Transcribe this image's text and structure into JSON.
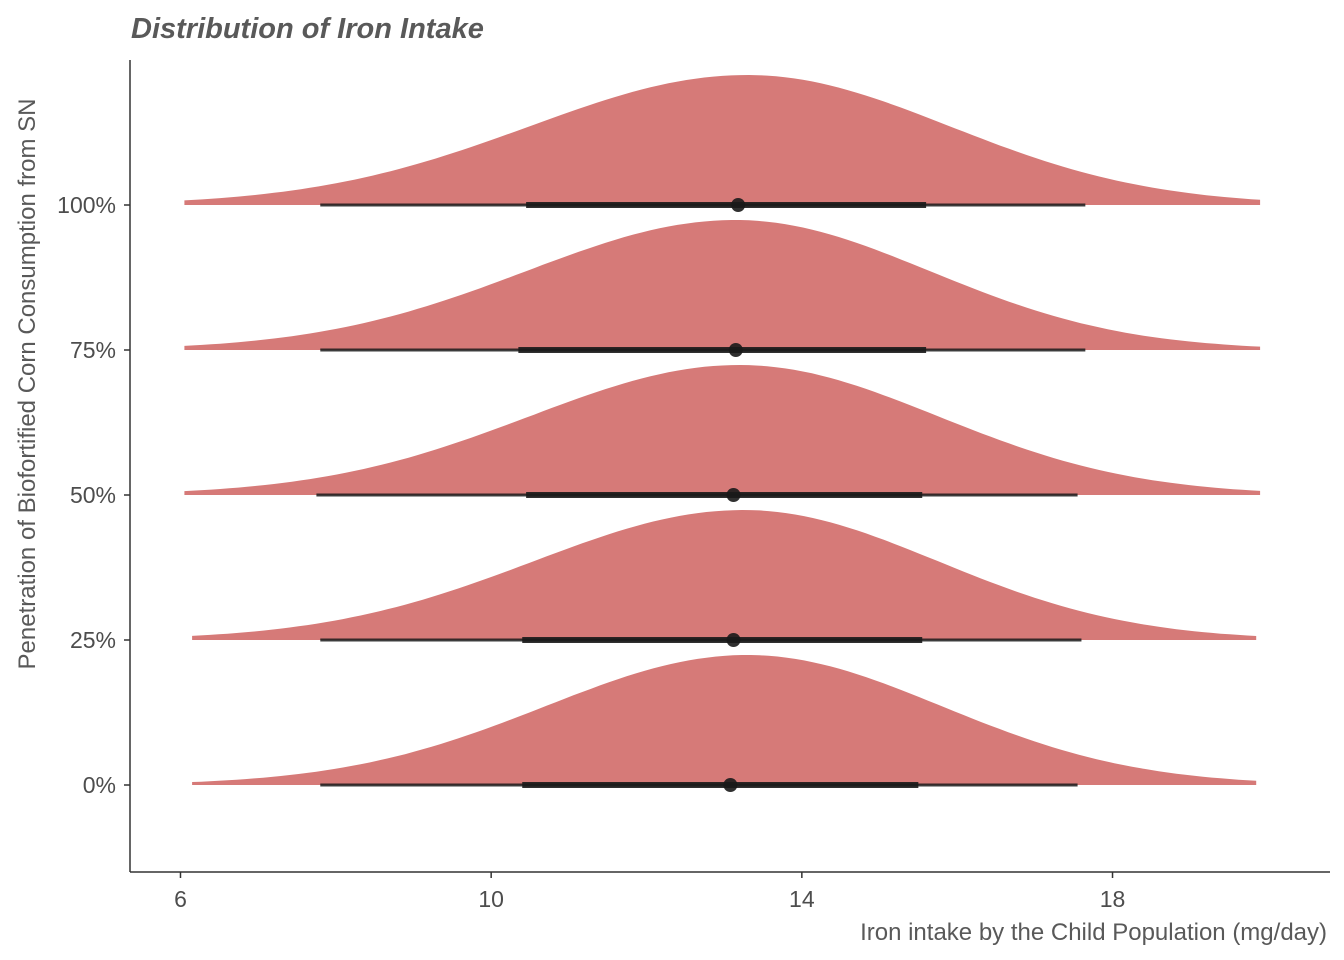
{
  "chart_data": {
    "type": "area",
    "subtype": "half-eye (ridgeline density with point interval)",
    "title": "Distribution of Iron Intake",
    "xlabel": "Iron intake by the Child Population (mg/day)",
    "ylabel": "Penetration of Biofortified Corn Consumption from SN",
    "xticks": [
      6,
      10,
      14,
      18
    ],
    "xlim": [
      5.35,
      20.8
    ],
    "categories": [
      "0%",
      "25%",
      "50%",
      "75%",
      "100%"
    ],
    "fill_color": "#d67a78",
    "interval_color": "#1a1a1a",
    "grid": false,
    "legend": "none",
    "series": [
      {
        "category": "0%",
        "min": 6.15,
        "max": 19.85,
        "mode": 13.3,
        "sd_left": 2.6,
        "sd_right": 2.5,
        "median": 13.08,
        "interval_66": [
          10.4,
          15.5
        ],
        "interval_95": [
          7.8,
          17.55
        ]
      },
      {
        "category": "25%",
        "min": 6.15,
        "max": 19.85,
        "mode": 13.25,
        "sd_left": 2.7,
        "sd_right": 2.5,
        "median": 13.12,
        "interval_66": [
          10.4,
          15.55
        ],
        "interval_95": [
          7.8,
          17.6
        ]
      },
      {
        "category": "50%",
        "min": 6.05,
        "max": 19.9,
        "mode": 13.2,
        "sd_left": 2.7,
        "sd_right": 2.55,
        "median": 13.12,
        "interval_66": [
          10.45,
          15.55
        ],
        "interval_95": [
          7.75,
          17.55
        ]
      },
      {
        "category": "75%",
        "min": 6.05,
        "max": 19.9,
        "mode": 13.15,
        "sd_left": 2.7,
        "sd_right": 2.5,
        "median": 13.15,
        "interval_66": [
          10.35,
          15.6
        ],
        "interval_95": [
          7.8,
          17.65
        ]
      },
      {
        "category": "100%",
        "min": 6.05,
        "max": 19.9,
        "mode": 13.3,
        "sd_left": 2.8,
        "sd_right": 2.6,
        "median": 13.18,
        "interval_66": [
          10.45,
          15.6
        ],
        "interval_95": [
          7.8,
          17.65
        ]
      }
    ]
  }
}
